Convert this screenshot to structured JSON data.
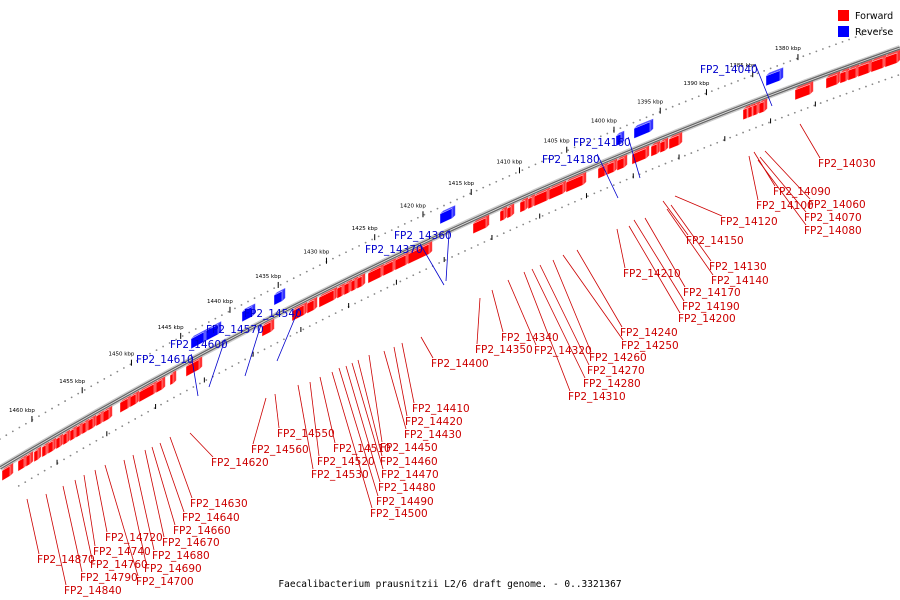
{
  "caption": "Faecalibacterium prausnitzii L2/6 draft genome. - 0..3321367",
  "legend": [
    {
      "label": "Forward",
      "color": "#ff0000"
    },
    {
      "label": "Reverse",
      "color": "#0000ff"
    }
  ],
  "colors": {
    "forward": "#ff0000",
    "reverse": "#0000ff",
    "backbone": "#666666",
    "forward_label": "#cc0000",
    "reverse_label": "#0000cc"
  },
  "ticks": [
    "1380 kbp",
    "1385 kbp",
    "1390 kbp",
    "1395 kbp",
    "1400 kbp",
    "1405 kbp",
    "1410 kbp",
    "1415 kbp",
    "1420 kbp",
    "1425 kbp",
    "1430 kbp",
    "1435 kbp",
    "1440 kbp",
    "1445 kbp",
    "1450 kbp",
    "1455 kbp",
    "1460 kbp"
  ],
  "reverse_labels": [
    "FP2_14040",
    "FP2_14160",
    "FP2_14180",
    "FP2_14360",
    "FP2_14370",
    "FP2_14540",
    "FP2_14570",
    "FP2_14600",
    "FP2_14610"
  ],
  "forward_labels": [
    "FP2_14030",
    "FP2_14090",
    "FP2_14060",
    "FP2_14100",
    "FP2_14070",
    "FP2_14080",
    "FP2_14120",
    "FP2_14150",
    "FP2_14130",
    "FP2_14140",
    "FP2_14170",
    "FP2_14190",
    "FP2_14200",
    "FP2_14210",
    "FP2_14240",
    "FP2_14250",
    "FP2_14260",
    "FP2_14270",
    "FP2_14280",
    "FP2_14310",
    "FP2_14320",
    "FP2_14340",
    "FP2_14350",
    "FP2_14400",
    "FP2_14410",
    "FP2_14420",
    "FP2_14430",
    "FP2_14450",
    "FP2_14460",
    "FP2_14470",
    "FP2_14480",
    "FP2_14490",
    "FP2_14500",
    "FP2_14510",
    "FP2_14520",
    "FP2_14530",
    "FP2_14550",
    "FP2_14560",
    "FP2_14620",
    "FP2_14630",
    "FP2_14640",
    "FP2_14660",
    "FP2_14670",
    "FP2_14680",
    "FP2_14690",
    "FP2_14700",
    "FP2_14720",
    "FP2_14740",
    "FP2_14760",
    "FP2_14790",
    "FP2_14840",
    "FP2_14870"
  ]
}
